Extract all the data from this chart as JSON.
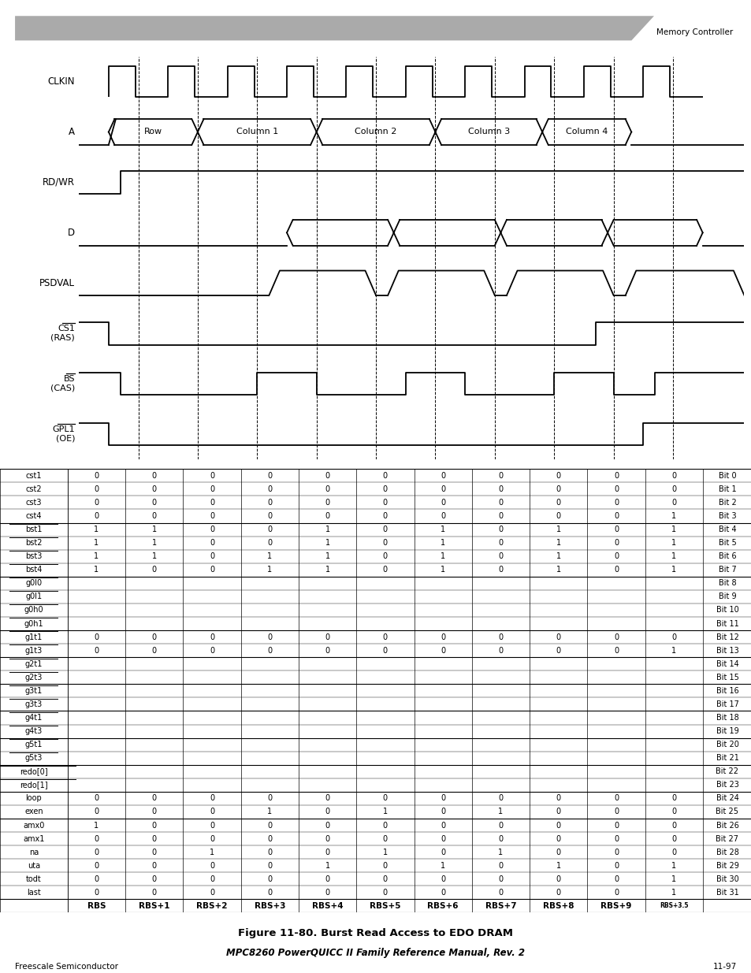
{
  "title": "Figure 11-80. Burst Read Access to EDO DRAM",
  "header_right": "Memory Controller",
  "footer_left": "Freescale Semiconductor",
  "footer_right": "11-97",
  "subtitle": "MPC8260 PowerQUICC II Family Reference Manual, Rev. 2",
  "col_labels": [
    "RBS",
    "RBS+1",
    "RBS+2",
    "RBS+3",
    "RBS+4",
    "RBS+5",
    "RBS+6",
    "RBS+7",
    "RBS+8",
    "RBS+9",
    "RBS+3.5"
  ],
  "table_rows": [
    {
      "label": "cst1",
      "values": [
        0,
        0,
        0,
        0,
        0,
        0,
        0,
        0,
        0,
        0,
        0
      ],
      "bit": "Bit 0",
      "overline_chars": 0
    },
    {
      "label": "cst2",
      "values": [
        0,
        0,
        0,
        0,
        0,
        0,
        0,
        0,
        0,
        0,
        0
      ],
      "bit": "Bit 1",
      "overline_chars": 0
    },
    {
      "label": "cst3",
      "values": [
        0,
        0,
        0,
        0,
        0,
        0,
        0,
        0,
        0,
        0,
        0
      ],
      "bit": "Bit 2",
      "overline_chars": 0
    },
    {
      "label": "cst4",
      "values": [
        0,
        0,
        0,
        0,
        0,
        0,
        0,
        0,
        0,
        0,
        1
      ],
      "bit": "Bit 3",
      "overline_chars": 0
    },
    {
      "label": "bst1",
      "values": [
        1,
        1,
        0,
        0,
        1,
        0,
        1,
        0,
        1,
        0,
        1
      ],
      "bit": "Bit 4",
      "overline_chars": 0
    },
    {
      "label": "bst2",
      "values": [
        1,
        1,
        0,
        0,
        1,
        0,
        1,
        0,
        1,
        0,
        1
      ],
      "bit": "Bit 5",
      "overline_chars": 0
    },
    {
      "label": "bst3",
      "values": [
        1,
        1,
        0,
        1,
        1,
        0,
        1,
        0,
        1,
        0,
        1
      ],
      "bit": "Bit 6",
      "overline_chars": 0
    },
    {
      "label": "bst4",
      "values": [
        1,
        0,
        0,
        1,
        1,
        0,
        1,
        0,
        1,
        0,
        1
      ],
      "bit": "Bit 7",
      "overline_chars": 0
    },
    {
      "label": "g0l0",
      "values": [
        null,
        null,
        null,
        null,
        null,
        null,
        null,
        null,
        null,
        null,
        null
      ],
      "bit": "Bit 8",
      "overline_chars": 0
    },
    {
      "label": "g0l1",
      "values": [
        null,
        null,
        null,
        null,
        null,
        null,
        null,
        null,
        null,
        null,
        null
      ],
      "bit": "Bit 9",
      "overline_chars": 0
    },
    {
      "label": "g0h0",
      "values": [
        null,
        null,
        null,
        null,
        null,
        null,
        null,
        null,
        null,
        null,
        null
      ],
      "bit": "Bit 10",
      "overline_chars": 0
    },
    {
      "label": "g0h1",
      "values": [
        null,
        null,
        null,
        null,
        null,
        null,
        null,
        null,
        null,
        null,
        null
      ],
      "bit": "Bit 11",
      "overline_chars": 0
    },
    {
      "label": "g1t1",
      "values": [
        0,
        0,
        0,
        0,
        0,
        0,
        0,
        0,
        0,
        0,
        0
      ],
      "bit": "Bit 12",
      "overline_chars": 0
    },
    {
      "label": "g1t3",
      "values": [
        0,
        0,
        0,
        0,
        0,
        0,
        0,
        0,
        0,
        0,
        1
      ],
      "bit": "Bit 13",
      "overline_chars": 0
    },
    {
      "label": "g2t1",
      "values": [
        null,
        null,
        null,
        null,
        null,
        null,
        null,
        null,
        null,
        null,
        null
      ],
      "bit": "Bit 14",
      "overline_chars": 0
    },
    {
      "label": "g2t3",
      "values": [
        null,
        null,
        null,
        null,
        null,
        null,
        null,
        null,
        null,
        null,
        null
      ],
      "bit": "Bit 15",
      "overline_chars": 0
    },
    {
      "label": "g3t1",
      "values": [
        null,
        null,
        null,
        null,
        null,
        null,
        null,
        null,
        null,
        null,
        null
      ],
      "bit": "Bit 16",
      "overline_chars": 0
    },
    {
      "label": "g3t3",
      "values": [
        null,
        null,
        null,
        null,
        null,
        null,
        null,
        null,
        null,
        null,
        null
      ],
      "bit": "Bit 17",
      "overline_chars": 0
    },
    {
      "label": "g4t1",
      "values": [
        null,
        null,
        null,
        null,
        null,
        null,
        null,
        null,
        null,
        null,
        null
      ],
      "bit": "Bit 18",
      "overline_chars": 0
    },
    {
      "label": "g4t3",
      "values": [
        null,
        null,
        null,
        null,
        null,
        null,
        null,
        null,
        null,
        null,
        null
      ],
      "bit": "Bit 19",
      "overline_chars": 0
    },
    {
      "label": "g5t1",
      "values": [
        null,
        null,
        null,
        null,
        null,
        null,
        null,
        null,
        null,
        null,
        null
      ],
      "bit": "Bit 20",
      "overline_chars": 0
    },
    {
      "label": "g5t3",
      "values": [
        null,
        null,
        null,
        null,
        null,
        null,
        null,
        null,
        null,
        null,
        null
      ],
      "bit": "Bit 21",
      "overline_chars": 0
    },
    {
      "label": "redo[0]",
      "values": [
        null,
        null,
        null,
        null,
        null,
        null,
        null,
        null,
        null,
        null,
        null
      ],
      "bit": "Bit 22",
      "overline_chars": 0
    },
    {
      "label": "redo[1]",
      "values": [
        null,
        null,
        null,
        null,
        null,
        null,
        null,
        null,
        null,
        null,
        null
      ],
      "bit": "Bit 23",
      "overline_chars": 0
    },
    {
      "label": "loop",
      "values": [
        0,
        0,
        0,
        0,
        0,
        0,
        0,
        0,
        0,
        0,
        0
      ],
      "bit": "Bit 24",
      "overline_chars": 0
    },
    {
      "label": "exen",
      "values": [
        0,
        0,
        0,
        1,
        0,
        1,
        0,
        1,
        0,
        0,
        0
      ],
      "bit": "Bit 25",
      "overline_chars": 0
    },
    {
      "label": "amx0",
      "values": [
        1,
        0,
        0,
        0,
        0,
        0,
        0,
        0,
        0,
        0,
        0
      ],
      "bit": "Bit 26",
      "overline_chars": 0
    },
    {
      "label": "amx1",
      "values": [
        0,
        0,
        0,
        0,
        0,
        0,
        0,
        0,
        0,
        0,
        0
      ],
      "bit": "Bit 27",
      "overline_chars": 0
    },
    {
      "label": "na",
      "values": [
        0,
        0,
        1,
        0,
        0,
        1,
        0,
        1,
        0,
        0,
        0
      ],
      "bit": "Bit 28",
      "overline_chars": 0
    },
    {
      "label": "uta",
      "values": [
        0,
        0,
        0,
        0,
        1,
        0,
        1,
        0,
        1,
        0,
        1
      ],
      "bit": "Bit 29",
      "overline_chars": 0
    },
    {
      "label": "todt",
      "values": [
        0,
        0,
        0,
        0,
        0,
        0,
        0,
        0,
        0,
        0,
        1
      ],
      "bit": "Bit 30",
      "overline_chars": 0
    },
    {
      "label": "last",
      "values": [
        0,
        0,
        0,
        0,
        0,
        0,
        0,
        0,
        0,
        0,
        1
      ],
      "bit": "Bit 31",
      "overline_chars": 0
    }
  ]
}
